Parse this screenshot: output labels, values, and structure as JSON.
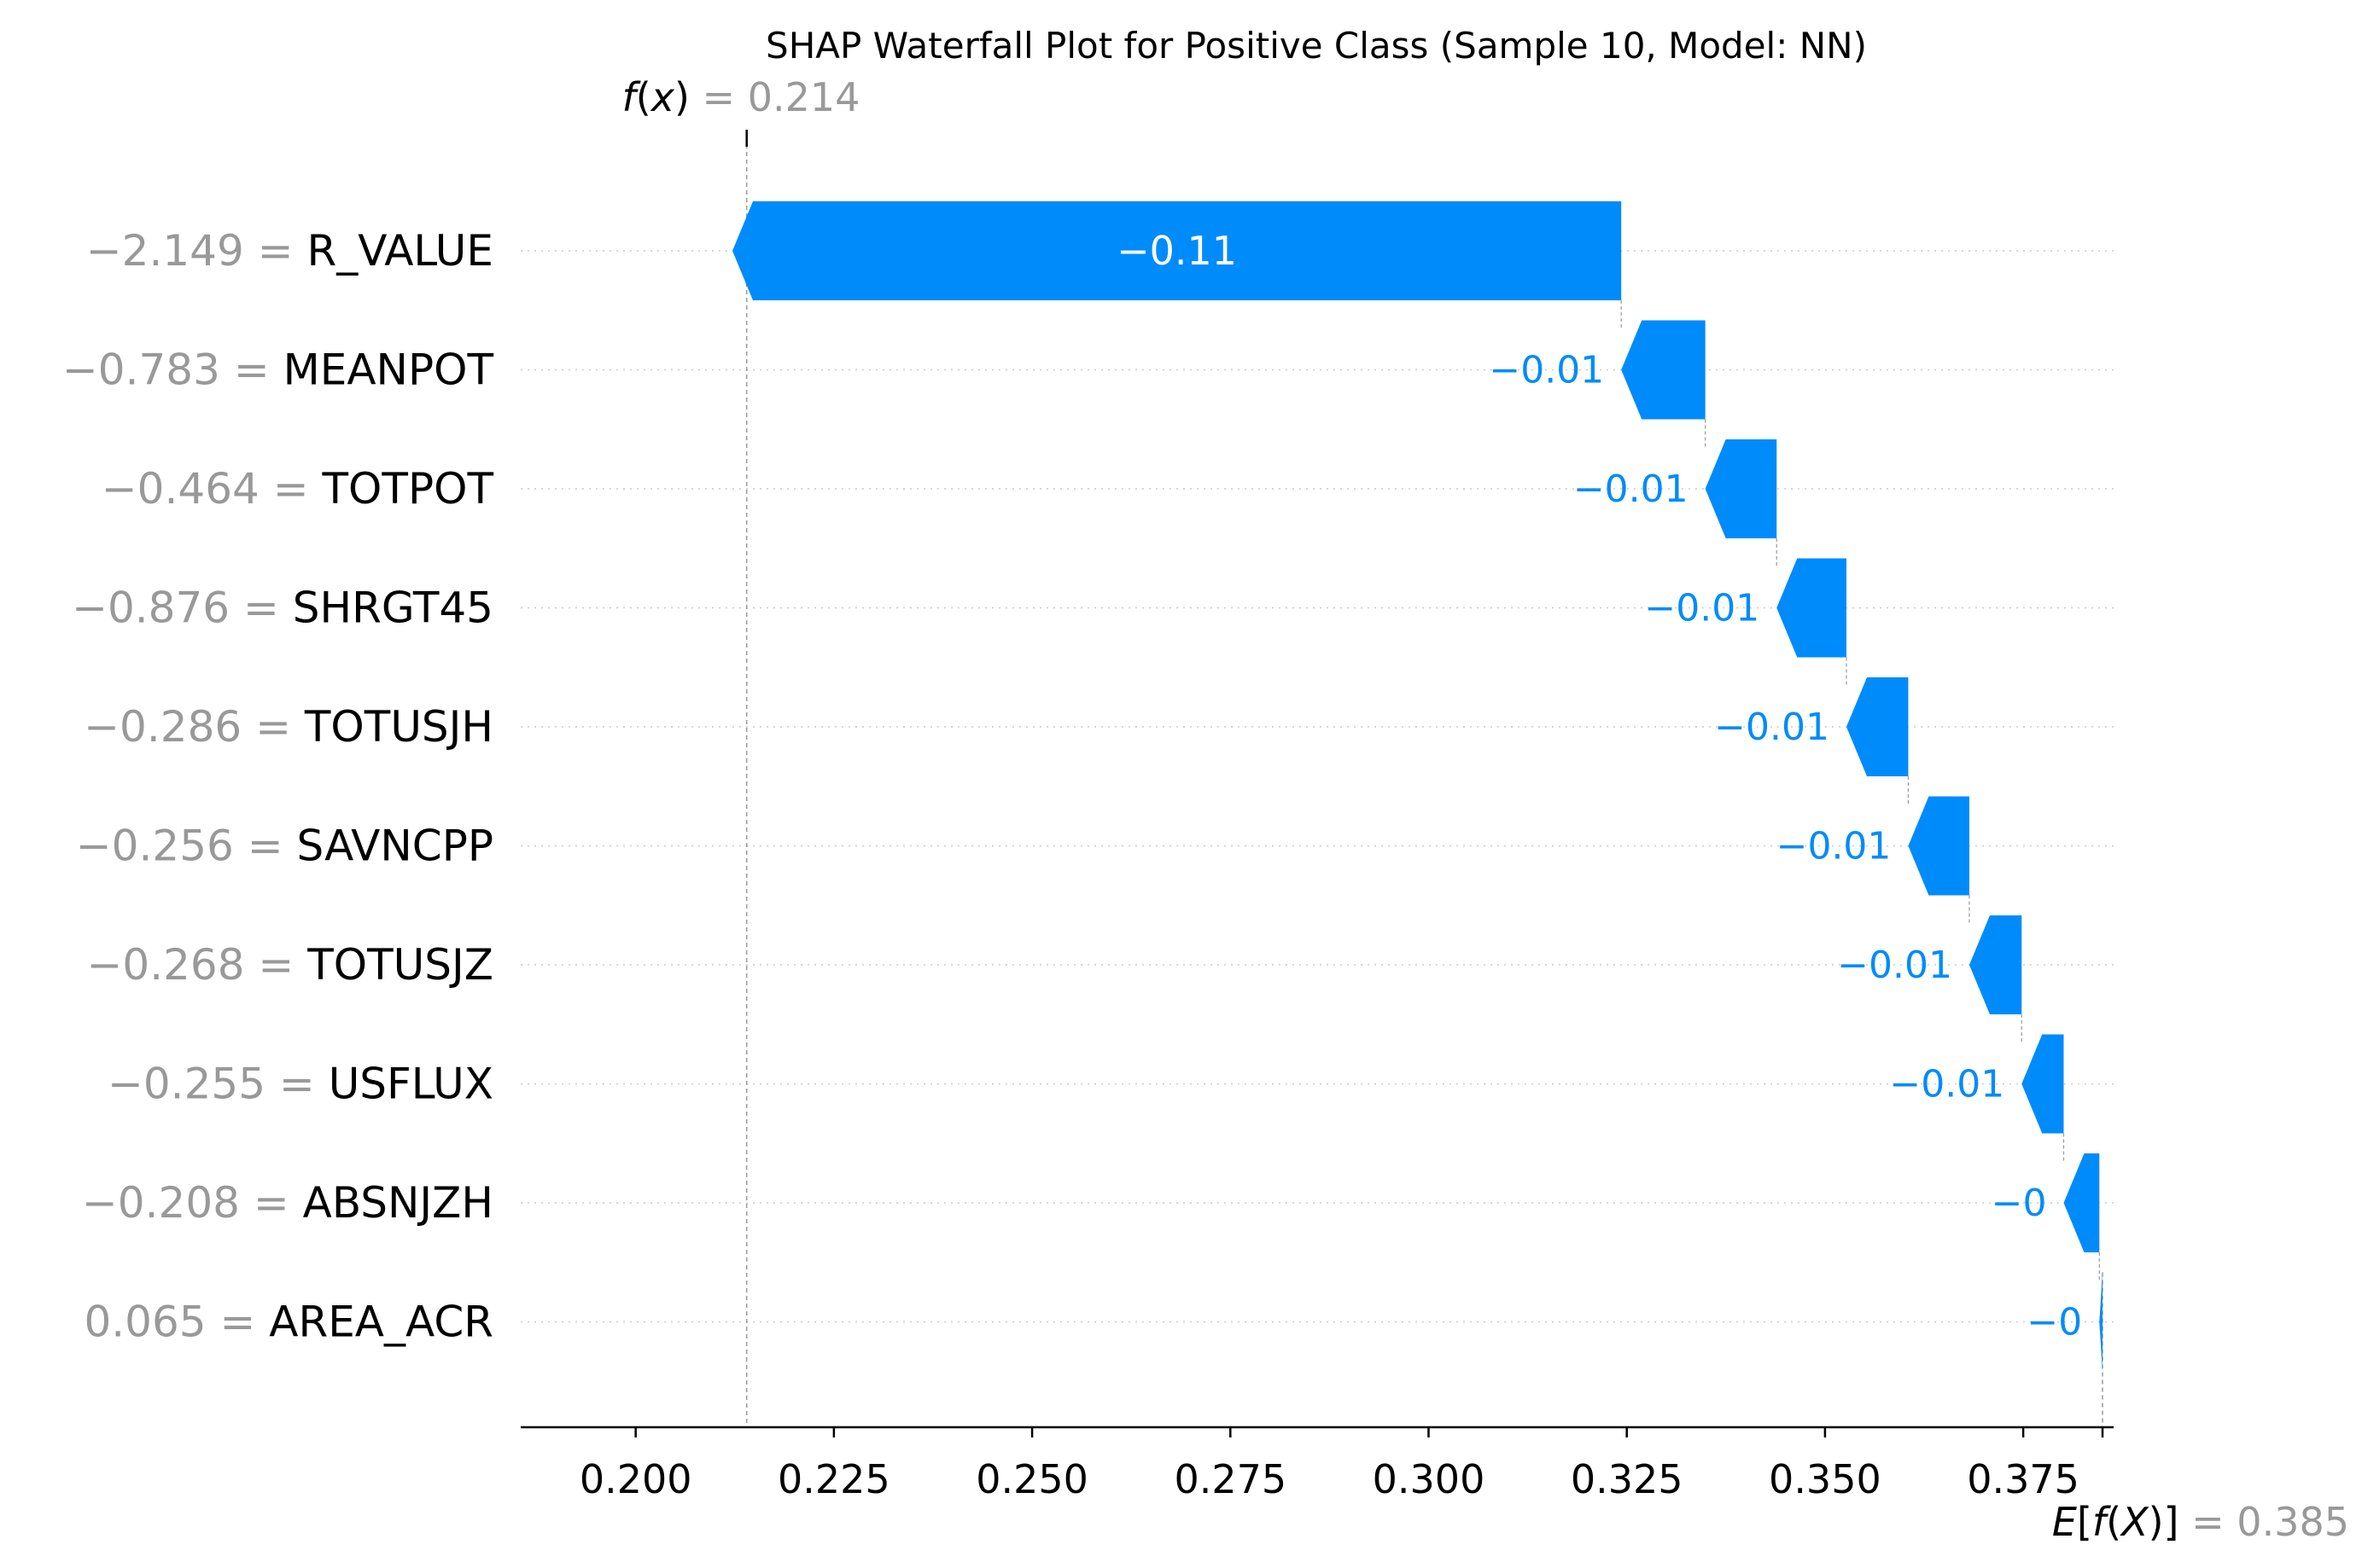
{
  "chart_data": {
    "type": "waterfall",
    "title": "SHAP Waterfall Plot for Positive Class (Sample 10, Model: NN)",
    "fx": {
      "label_f": "f",
      "label_x": "x",
      "value_text": "0.214",
      "value": 0.214
    },
    "efx": {
      "label_E": "E",
      "label_f": "f",
      "label_X": "X",
      "value_text": "0.385",
      "value": 0.385
    },
    "xlim": [
      0.1855,
      0.3864
    ],
    "xticks": [
      {
        "value": 0.2,
        "label": "0.200"
      },
      {
        "value": 0.225,
        "label": "0.225"
      },
      {
        "value": 0.25,
        "label": "0.250"
      },
      {
        "value": 0.275,
        "label": "0.275"
      },
      {
        "value": 0.3,
        "label": "0.300"
      },
      {
        "value": 0.325,
        "label": "0.325"
      },
      {
        "value": 0.35,
        "label": "0.350"
      },
      {
        "value": 0.375,
        "label": "0.375"
      }
    ],
    "grid": false,
    "bar_color": "#008bfb",
    "features": [
      {
        "name": "R_VALUE",
        "feature_value": "−2.149",
        "shap": -0.1121,
        "label": "−0.11"
      },
      {
        "name": "MEANPOT",
        "feature_value": "−0.783",
        "shap": -0.0106,
        "label": "−0.01"
      },
      {
        "name": "TOTPOT",
        "feature_value": "−0.464",
        "shap": -0.009,
        "label": "−0.01"
      },
      {
        "name": "SHRGT45",
        "feature_value": "−0.876",
        "shap": -0.0088,
        "label": "−0.01"
      },
      {
        "name": "TOTUSJH",
        "feature_value": "−0.286",
        "shap": -0.0078,
        "label": "−0.01"
      },
      {
        "name": "SAVNCPP",
        "feature_value": "−0.256",
        "shap": -0.0077,
        "label": "−0.01"
      },
      {
        "name": "TOTUSJZ",
        "feature_value": "−0.268",
        "shap": -0.0066,
        "label": "−0.01"
      },
      {
        "name": "USFLUX",
        "feature_value": "−0.255",
        "shap": -0.0053,
        "label": "−0.01"
      },
      {
        "name": "ABSNJZH",
        "feature_value": "−0.208",
        "shap": -0.0045,
        "label": "−0"
      },
      {
        "name": "AREA_ACR",
        "feature_value": "0.065",
        "shap": -0.0004,
        "label": "−0"
      }
    ]
  }
}
